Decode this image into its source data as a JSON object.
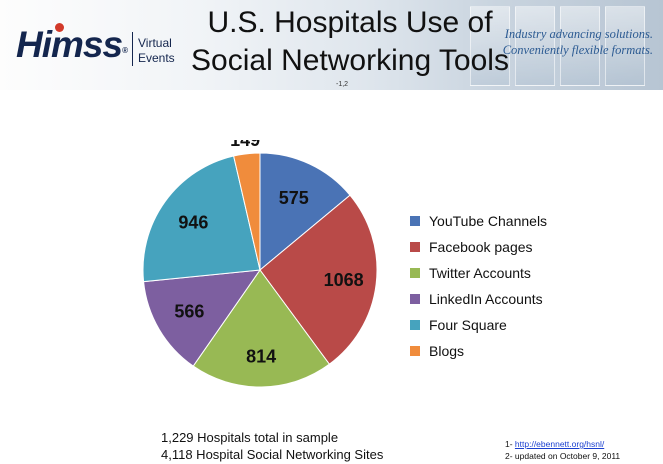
{
  "header": {
    "logo": {
      "brand": "HIMSS",
      "line1": "Virtual",
      "line2": "Events"
    },
    "title_line1": "U.S. Hospitals Use of",
    "title_line2": "Social Networking Tools",
    "title_superscript": "-1,2",
    "tagline_line1": "Industry advancing solutions.",
    "tagline_line2": "Conveniently flexible formats."
  },
  "chart_data": {
    "type": "pie",
    "title": "",
    "categories": [
      "YouTube Channels",
      "Facebook pages",
      "Twitter Accounts",
      "LinkedIn Accounts",
      "Four Square",
      "Blogs"
    ],
    "values": [
      575,
      1068,
      814,
      566,
      946,
      149
    ],
    "colors": [
      "#4a73b5",
      "#b94a48",
      "#98b954",
      "#7d5fa0",
      "#46a3be",
      "#f08c3c"
    ],
    "legend_position": "right",
    "data_labels": true
  },
  "notes": {
    "line1": "1,229 Hospitals total in sample",
    "line2": "4,118 Hospital Social Networking Sites"
  },
  "footnotes": {
    "f1_prefix": "1- ",
    "f1_link": "http://ebennett.org/hsnl/",
    "f2": "2- updated on October 9, 2011"
  }
}
